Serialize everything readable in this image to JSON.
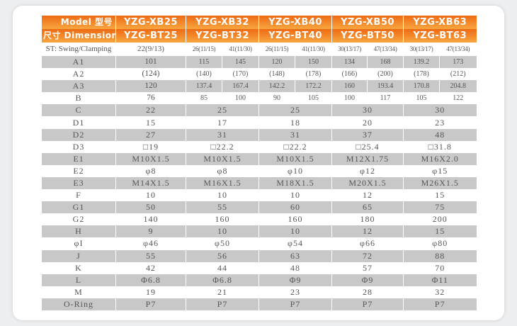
{
  "header": {
    "model_label": "Model 型号",
    "dimension_label": "尺寸 Dimension",
    "models": [
      {
        "top": "YZG-XB25",
        "bottom": "YZG-BT25"
      },
      {
        "top": "YZG-XB32",
        "bottom": "YZG-BT32"
      },
      {
        "top": "YZG-XB40",
        "bottom": "YZG-BT40"
      },
      {
        "top": "YZG-XB50",
        "bottom": "YZG-BT50"
      },
      {
        "top": "YZG-XB63",
        "bottom": "YZG-BT63"
      }
    ]
  },
  "stroke_row": {
    "label": "ST: Swing/Clamping",
    "values": [
      "22(9/13)",
      "26(11/15)",
      "41(11/30)",
      "26(11/15)",
      "41(11/30)",
      "30(13/17)",
      "47(13/34)",
      "30(13/17)",
      "47(13/34)"
    ]
  },
  "rows": [
    {
      "label": "A1",
      "values": [
        "101",
        "115",
        "145",
        "120",
        "150",
        "134",
        "168",
        "139.2",
        "173"
      ]
    },
    {
      "label": "A2",
      "values": [
        "(124)",
        "(140)",
        "(170)",
        "(148)",
        "(178)",
        "(166)",
        "(200)",
        "(178)",
        "(212)"
      ]
    },
    {
      "label": "A3",
      "values": [
        "120",
        "137.4",
        "167.4",
        "142.2",
        "172.2",
        "160",
        "193.4",
        "170.8",
        "204.8"
      ]
    },
    {
      "label": "B",
      "values": [
        "76",
        "85",
        "100",
        "90",
        "105",
        "100",
        "117",
        "105",
        "122"
      ]
    },
    {
      "label": "C",
      "values": [
        "22",
        "25",
        "25",
        "30",
        "30"
      ]
    },
    {
      "label": "D1",
      "values": [
        "15",
        "17",
        "18",
        "20",
        "23"
      ]
    },
    {
      "label": "D2",
      "values": [
        "27",
        "31",
        "31",
        "37",
        "48"
      ]
    },
    {
      "label": "D3",
      "values": [
        "□19",
        "□22.2",
        "□22.2",
        "□25.4",
        "□31.8"
      ]
    },
    {
      "label": "E1",
      "values": [
        "M10X1.5",
        "M10X1.5",
        "M10X1.5",
        "M12X1.75",
        "M16X2.0"
      ]
    },
    {
      "label": "E2",
      "values": [
        "φ8",
        "φ8",
        "φ10",
        "φ12",
        "φ15"
      ]
    },
    {
      "label": "E3",
      "values": [
        "M14X1.5",
        "M16X1.5",
        "M18X1.5",
        "M20X1.5",
        "M26X1.5"
      ]
    },
    {
      "label": "F",
      "values": [
        "10",
        "10",
        "10",
        "12",
        "15"
      ]
    },
    {
      "label": "G1",
      "values": [
        "50",
        "55",
        "60",
        "65",
        "75"
      ]
    },
    {
      "label": "G2",
      "values": [
        "140",
        "160",
        "160",
        "180",
        "200"
      ]
    },
    {
      "label": "H",
      "values": [
        "9",
        "10",
        "10",
        "12",
        "15"
      ]
    },
    {
      "label": "φI",
      "values": [
        "φ46",
        "φ50",
        "φ54",
        "φ66",
        "φ80"
      ]
    },
    {
      "label": "J",
      "values": [
        "55",
        "56",
        "63",
        "72",
        "88"
      ]
    },
    {
      "label": "K",
      "values": [
        "42",
        "44",
        "48",
        "57",
        "70"
      ]
    },
    {
      "label": "L",
      "values": [
        "Φ6.8",
        "Φ6.8",
        "Φ9",
        "Φ9",
        "Φ11"
      ]
    },
    {
      "label": "M",
      "values": [
        "19",
        "21",
        "23",
        "28",
        "32"
      ]
    },
    {
      "label": "O-Ring",
      "values": [
        "P7",
        "P7",
        "P7",
        "P7",
        "P7"
      ]
    }
  ],
  "colors": {
    "header_top": "#ee6a14",
    "header_bottom": "#f7a640",
    "row_shade": "#c8c8c8"
  }
}
